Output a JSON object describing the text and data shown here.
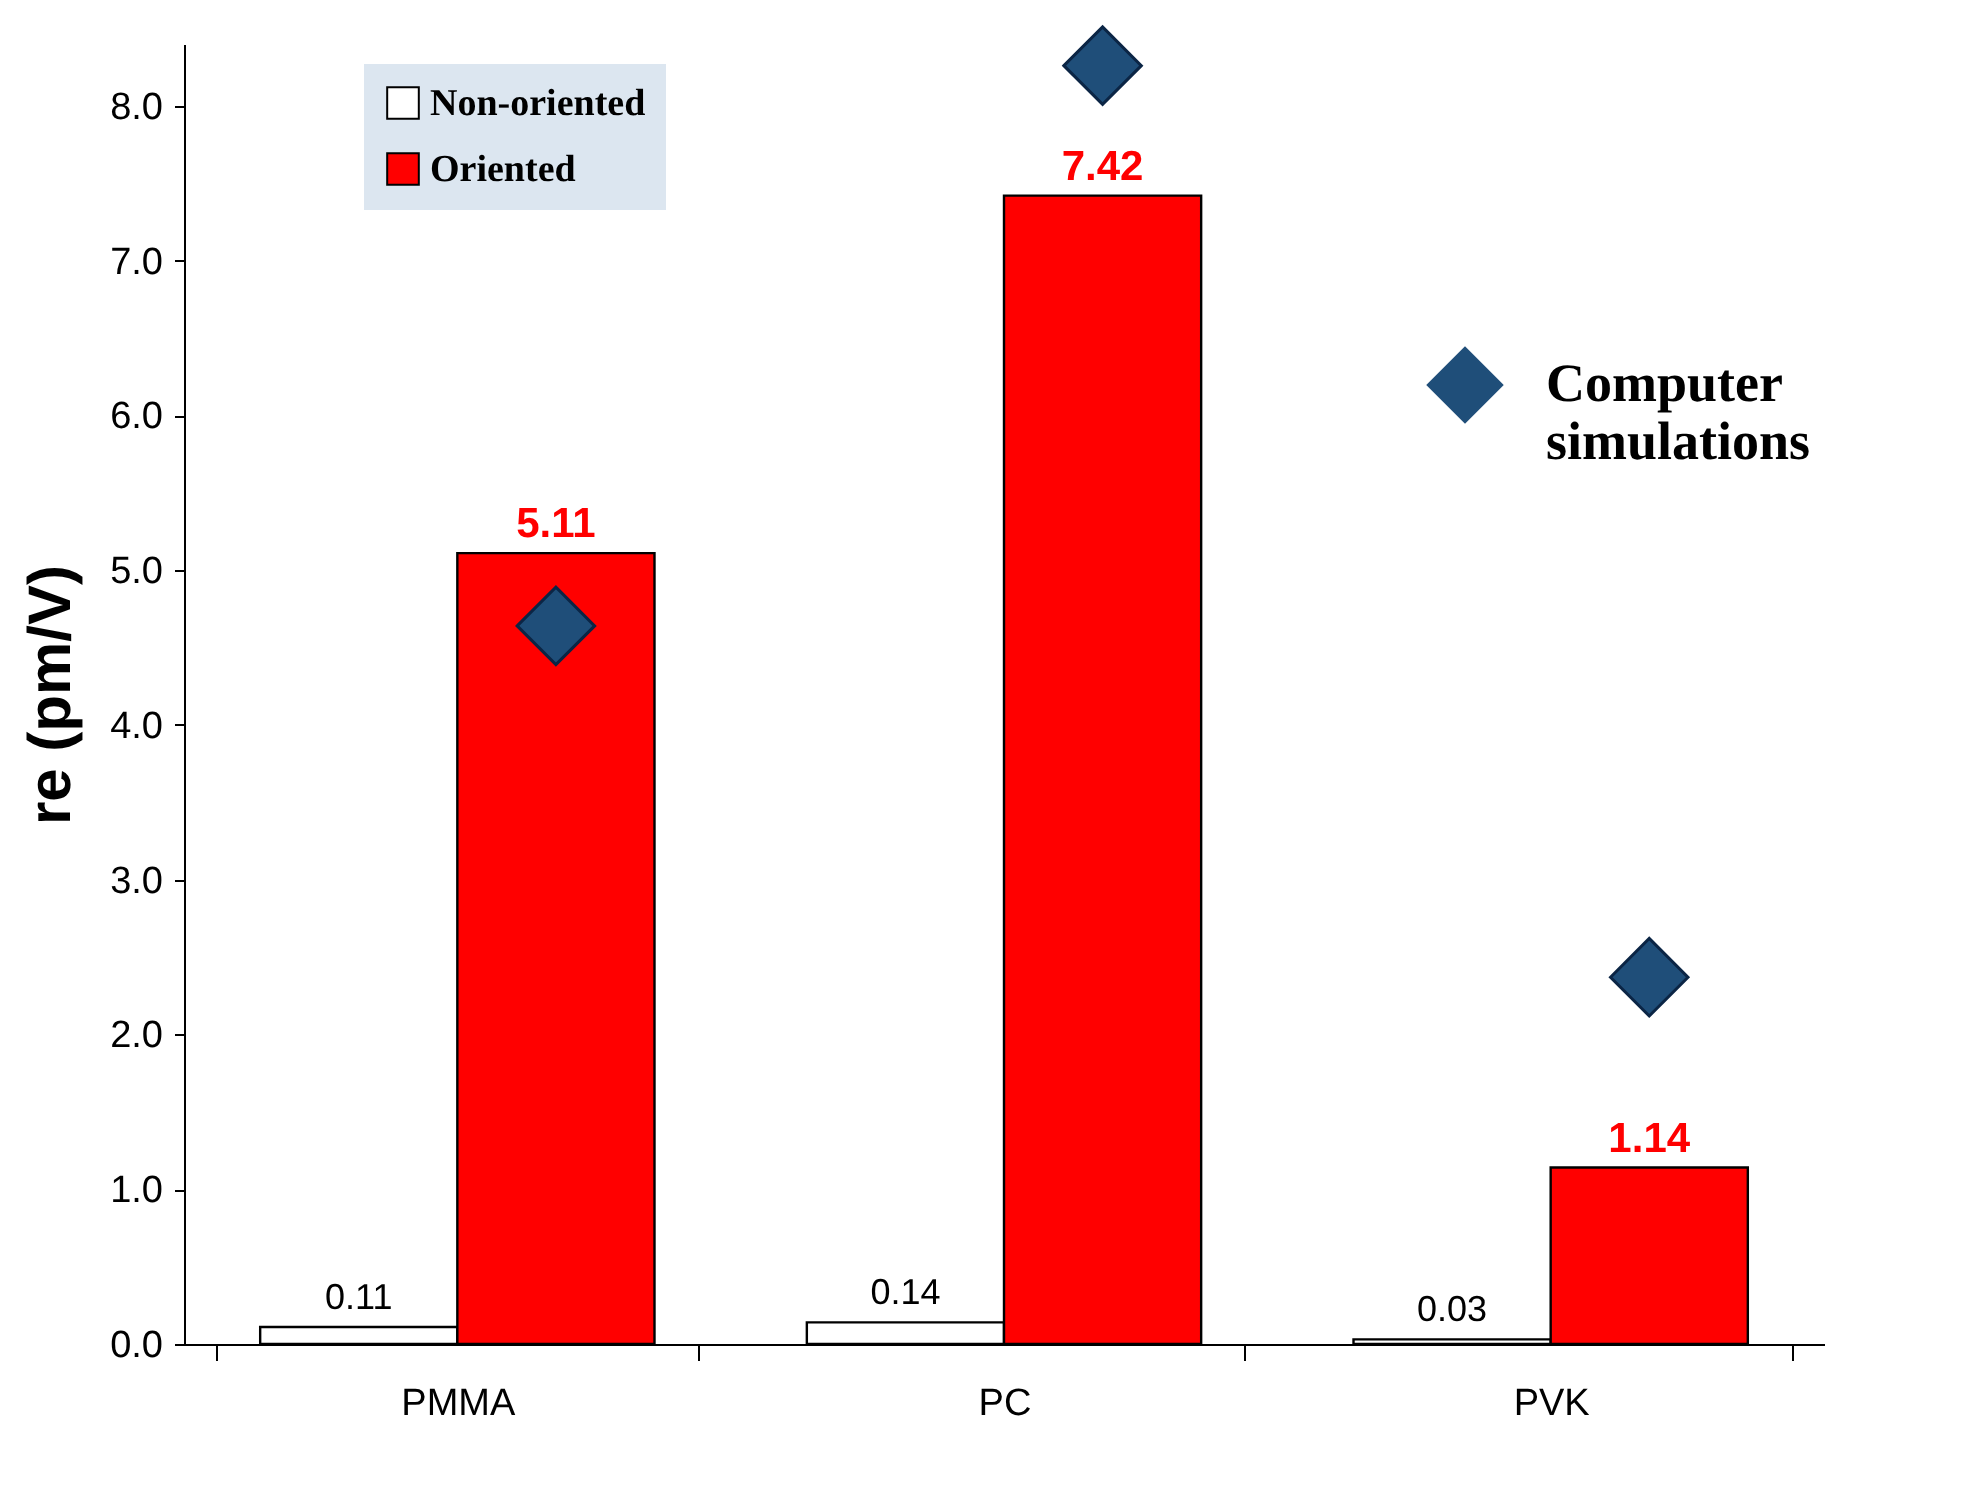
{
  "chart_data": {
    "type": "bar",
    "ylabel": "re (pm/V)",
    "categories": [
      "PMMA",
      "PC",
      "PVK"
    ],
    "series": [
      {
        "name": "Non-oriented",
        "color": "#ffffff",
        "values": [
          0.11,
          0.14,
          0.03
        ],
        "value_labels": [
          "0.11",
          "0.14",
          "0.03"
        ]
      },
      {
        "name": "Oriented",
        "color": "#ff0000",
        "values": [
          5.11,
          7.42,
          1.14
        ],
        "value_labels": [
          "5.11",
          "7.42",
          "1.14"
        ]
      },
      {
        "name": "Computer simulations",
        "type": "scatter",
        "color": "#1f4e79",
        "values": [
          4.64,
          8.26,
          2.37
        ]
      }
    ],
    "marker": "diamond",
    "legend": "top",
    "grid": false,
    "ylim": [
      0,
      8.4
    ],
    "yticks": [
      {
        "value": 0,
        "label": "0.0"
      },
      {
        "value": 1,
        "label": "1.0"
      },
      {
        "value": 2,
        "label": "2.0"
      },
      {
        "value": 3,
        "label": "3.0"
      },
      {
        "value": 4,
        "label": "4.0"
      },
      {
        "value": 5,
        "label": "5.0"
      },
      {
        "value": 6,
        "label": "6.0"
      },
      {
        "value": 7,
        "label": "7.0"
      },
      {
        "value": 8,
        "label": "8.0"
      }
    ]
  }
}
